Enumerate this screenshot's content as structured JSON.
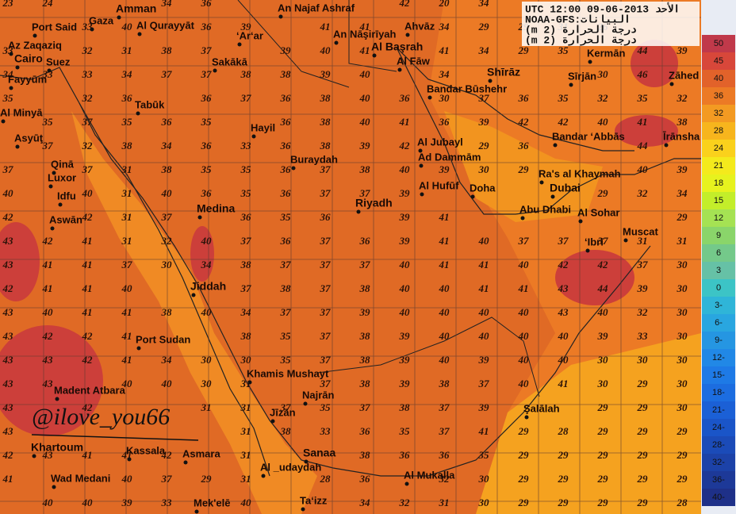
{
  "header": {
    "line1": "UTC 12:00 09-06-2013 الأحد",
    "line2": "NOAA-GFS:البيانات",
    "line3": "(m 2) درجة الحرارة",
    "line4": "(m 2) درجة الحرارة"
  },
  "watermark": "@ilove_you66",
  "legend": {
    "labels": [
      "50",
      "45",
      "40",
      "36",
      "32",
      "28",
      "24",
      "21",
      "18",
      "15",
      "12",
      "9",
      "6",
      "3",
      "0",
      "3-",
      "6-",
      "9-",
      "12-",
      "15-",
      "18-",
      "21-",
      "24-",
      "28-",
      "32-",
      "36-",
      "40-"
    ],
    "colors": [
      "#c0394a",
      "#d8473a",
      "#e2622a",
      "#ec7a25",
      "#f39a22",
      "#f7b51d",
      "#fad11c",
      "#f4ea1c",
      "#e7f21e",
      "#c3ee2a",
      "#a5e253",
      "#8ad56a",
      "#74c98a",
      "#66c1a6",
      "#3cc4c6",
      "#2fb5d8",
      "#29a6e0",
      "#2596e2",
      "#2188e6",
      "#1e7ae6",
      "#1c6de0",
      "#1b60d6",
      "#1a55c8",
      "#1b4bb8",
      "#1c42a8",
      "#1d3998",
      "#1e3088"
    ]
  },
  "places": [
    "Amman",
    "Gaza",
    "Port Said",
    "Az Zaqaziq",
    "Al Qurayyāt",
    "An Najaf Ashraf",
    "Ahvāz",
    "An Nāşirīyah",
    "‘Ar‘ar",
    "Cairo",
    "Suez",
    "Sakākā",
    "Al Başrah",
    "Al Fāw",
    "Kermān",
    "Fayyūm",
    "Shīrāz",
    "Sīrjān",
    "Zāhed",
    "Bandar Būshehr",
    "Tabūk",
    "Al Minyā",
    "Hayil",
    "Asyūţ",
    "Bandar ‘Abbās",
    "Īrānsha",
    "Al Jubayl",
    "Qinā",
    "Buraydah",
    "Ad Dammām",
    "Ra's al Khaymah",
    "Luxor",
    "Al Hufūf",
    "Doha",
    "Dubai",
    "Idfu",
    "Medina",
    "Riyadh",
    "Abu Dhabi",
    "Al Sohar",
    "Aswān",
    "Muscat",
    "‘Ibrī",
    "Jiddah",
    "Port Sudan",
    "Khamis Mushayt",
    "Madent Atbara",
    "Najrān",
    "Şalālah",
    "Jīzān",
    "Kassala",
    "Asmara",
    "Sanaa",
    "Khartoum",
    "Wad Medani",
    "Al _udaydah",
    "Al Mukalla",
    "Mek'elē",
    "Ta‘izz"
  ],
  "grid": {
    "rows": [
      [
        23,
        24,
        null,
        null,
        34,
        36,
        null,
        null,
        null,
        null,
        42,
        20,
        34,
        null,
        null,
        null,
        null,
        null
      ],
      [
        null,
        null,
        33,
        40,
        null,
        36,
        39,
        null,
        41,
        41,
        null,
        34,
        29,
        29,
        31,
        26,
        null,
        null
      ],
      [
        33,
        null,
        32,
        31,
        38,
        37,
        null,
        39,
        40,
        41,
        null,
        41,
        34,
        29,
        35,
        null,
        44,
        39
      ],
      [
        34,
        33,
        33,
        34,
        37,
        37,
        38,
        38,
        39,
        40,
        null,
        34,
        null,
        null,
        null,
        30,
        46,
        null
      ],
      [
        35,
        null,
        32,
        36,
        null,
        36,
        37,
        36,
        38,
        40,
        36,
        30,
        37,
        36,
        35,
        32,
        35,
        32
      ],
      [
        null,
        35,
        37,
        35,
        36,
        35,
        null,
        36,
        38,
        40,
        41,
        36,
        39,
        42,
        42,
        40,
        41,
        38
      ],
      [
        null,
        37,
        32,
        38,
        34,
        36,
        33,
        36,
        38,
        39,
        42,
        null,
        29,
        36,
        null,
        null,
        44,
        null
      ],
      [
        37,
        null,
        37,
        31,
        38,
        35,
        35,
        36,
        37,
        38,
        40,
        39,
        30,
        29,
        null,
        null,
        40,
        39
      ],
      [
        40,
        null,
        40,
        31,
        40,
        36,
        35,
        36,
        37,
        37,
        39,
        null,
        null,
        null,
        null,
        29,
        32,
        34
      ],
      [
        42,
        null,
        42,
        31,
        37,
        null,
        36,
        35,
        36,
        null,
        39,
        41,
        null,
        null,
        null,
        null,
        null,
        29
      ],
      [
        43,
        42,
        41,
        31,
        32,
        40,
        37,
        36,
        37,
        36,
        39,
        41,
        40,
        37,
        37,
        37,
        31,
        31
      ],
      [
        43,
        41,
        41,
        37,
        30,
        34,
        38,
        37,
        37,
        37,
        40,
        41,
        41,
        40,
        42,
        42,
        37,
        30
      ],
      [
        42,
        41,
        41,
        40,
        null,
        null,
        37,
        38,
        37,
        38,
        40,
        40,
        41,
        41,
        43,
        44,
        39,
        30
      ],
      [
        43,
        40,
        41,
        41,
        38,
        40,
        34,
        37,
        37,
        39,
        40,
        40,
        40,
        40,
        43,
        40,
        32,
        30
      ],
      [
        43,
        42,
        42,
        41,
        null,
        null,
        38,
        35,
        37,
        38,
        39,
        40,
        40,
        40,
        40,
        39,
        33,
        30
      ],
      [
        43,
        43,
        42,
        41,
        34,
        30,
        30,
        35,
        37,
        38,
        39,
        40,
        39,
        40,
        40,
        30,
        30,
        30
      ],
      [
        43,
        43,
        null,
        40,
        40,
        30,
        31,
        null,
        37,
        38,
        39,
        38,
        37,
        40,
        41,
        30,
        29,
        30
      ],
      [
        43,
        null,
        42,
        null,
        null,
        31,
        31,
        37,
        35,
        37,
        38,
        37,
        39,
        null,
        null,
        29,
        29,
        30
      ],
      [
        43,
        null,
        null,
        null,
        null,
        null,
        31,
        38,
        33,
        36,
        35,
        37,
        41,
        29,
        28,
        29,
        29,
        29
      ],
      [
        42,
        43,
        41,
        41,
        42,
        null,
        31,
        null,
        null,
        38,
        36,
        36,
        35,
        29,
        29,
        29,
        29,
        29
      ],
      [
        41,
        null,
        null,
        40,
        37,
        29,
        31,
        null,
        28,
        36,
        null,
        32,
        30,
        29,
        29,
        29,
        29,
        29
      ],
      [
        null,
        40,
        40,
        39,
        33,
        null,
        40,
        null,
        null,
        34,
        32,
        31,
        30,
        29,
        29,
        29,
        29,
        28
      ]
    ]
  }
}
